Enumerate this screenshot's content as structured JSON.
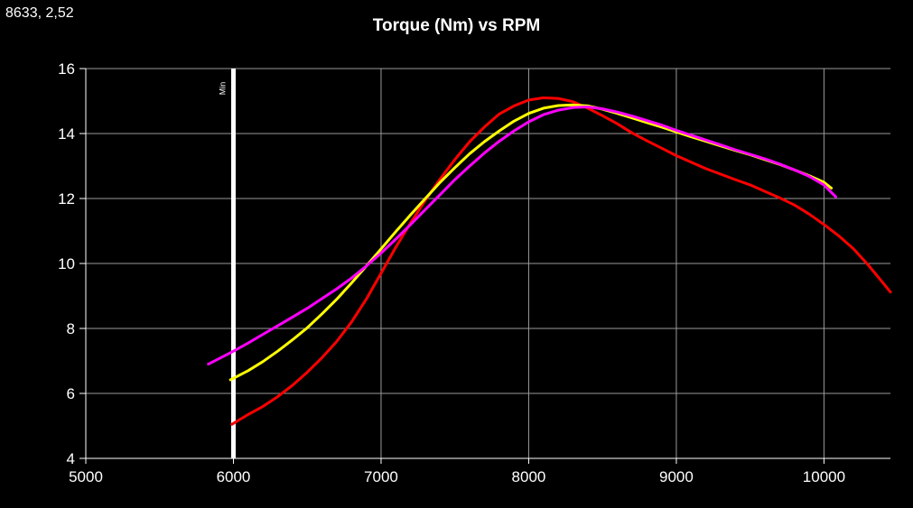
{
  "coordinate_readout": "8633, 2,52",
  "chart_data": {
    "type": "line",
    "title": "Torque (Nm) vs RPM",
    "xlabel": "",
    "ylabel": "",
    "xlim": [
      5000,
      10450
    ],
    "ylim": [
      4,
      16
    ],
    "x_ticks": [
      5000,
      6000,
      7000,
      8000,
      9000,
      10000
    ],
    "y_ticks": [
      4,
      6,
      8,
      10,
      12,
      14,
      16
    ],
    "grid": true,
    "background": "#000000",
    "marker": {
      "x": 6000,
      "label": "Min",
      "color": "#ffffff"
    },
    "series": [
      {
        "color": "#ff0000",
        "points": [
          [
            5990,
            5.05
          ],
          [
            6100,
            5.35
          ],
          [
            6200,
            5.6
          ],
          [
            6300,
            5.9
          ],
          [
            6400,
            6.25
          ],
          [
            6500,
            6.65
          ],
          [
            6600,
            7.1
          ],
          [
            6700,
            7.6
          ],
          [
            6800,
            8.2
          ],
          [
            6900,
            8.9
          ],
          [
            7000,
            9.7
          ],
          [
            7100,
            10.5
          ],
          [
            7200,
            11.25
          ],
          [
            7300,
            11.95
          ],
          [
            7400,
            12.6
          ],
          [
            7500,
            13.2
          ],
          [
            7600,
            13.75
          ],
          [
            7700,
            14.2
          ],
          [
            7800,
            14.6
          ],
          [
            7900,
            14.85
          ],
          [
            8000,
            15.03
          ],
          [
            8100,
            15.1
          ],
          [
            8200,
            15.08
          ],
          [
            8300,
            14.98
          ],
          [
            8400,
            14.78
          ],
          [
            8500,
            14.55
          ],
          [
            8600,
            14.3
          ],
          [
            8700,
            14.02
          ],
          [
            8800,
            13.78
          ],
          [
            8900,
            13.55
          ],
          [
            9000,
            13.32
          ],
          [
            9100,
            13.12
          ],
          [
            9200,
            12.92
          ],
          [
            9300,
            12.75
          ],
          [
            9400,
            12.58
          ],
          [
            9500,
            12.42
          ],
          [
            9600,
            12.22
          ],
          [
            9700,
            12.02
          ],
          [
            9800,
            11.8
          ],
          [
            9900,
            11.52
          ],
          [
            10000,
            11.2
          ],
          [
            10100,
            10.85
          ],
          [
            10200,
            10.45
          ],
          [
            10300,
            9.95
          ],
          [
            10400,
            9.4
          ],
          [
            10450,
            9.12
          ]
        ]
      },
      {
        "color": "#ffff00",
        "points": [
          [
            5980,
            6.42
          ],
          [
            6100,
            6.7
          ],
          [
            6200,
            6.98
          ],
          [
            6300,
            7.3
          ],
          [
            6400,
            7.65
          ],
          [
            6500,
            8.02
          ],
          [
            6600,
            8.45
          ],
          [
            6700,
            8.9
          ],
          [
            6800,
            9.4
          ],
          [
            6900,
            9.92
          ],
          [
            7000,
            10.45
          ],
          [
            7100,
            10.98
          ],
          [
            7200,
            11.5
          ],
          [
            7300,
            12.0
          ],
          [
            7400,
            12.5
          ],
          [
            7500,
            12.95
          ],
          [
            7600,
            13.38
          ],
          [
            7700,
            13.75
          ],
          [
            7800,
            14.08
          ],
          [
            7900,
            14.38
          ],
          [
            8000,
            14.62
          ],
          [
            8100,
            14.78
          ],
          [
            8200,
            14.86
          ],
          [
            8300,
            14.88
          ],
          [
            8400,
            14.85
          ],
          [
            8500,
            14.75
          ],
          [
            8600,
            14.62
          ],
          [
            8700,
            14.48
          ],
          [
            8800,
            14.34
          ],
          [
            8900,
            14.2
          ],
          [
            9000,
            14.05
          ],
          [
            9100,
            13.9
          ],
          [
            9200,
            13.76
          ],
          [
            9300,
            13.62
          ],
          [
            9400,
            13.48
          ],
          [
            9500,
            13.35
          ],
          [
            9600,
            13.2
          ],
          [
            9700,
            13.05
          ],
          [
            9800,
            12.88
          ],
          [
            9900,
            12.7
          ],
          [
            10000,
            12.5
          ],
          [
            10050,
            12.32
          ]
        ]
      },
      {
        "color": "#ff00ff",
        "points": [
          [
            5830,
            6.9
          ],
          [
            6000,
            7.3
          ],
          [
            6100,
            7.55
          ],
          [
            6200,
            7.82
          ],
          [
            6300,
            8.08
          ],
          [
            6400,
            8.35
          ],
          [
            6500,
            8.62
          ],
          [
            6600,
            8.92
          ],
          [
            6700,
            9.22
          ],
          [
            6800,
            9.55
          ],
          [
            6900,
            9.92
          ],
          [
            7000,
            10.32
          ],
          [
            7100,
            10.75
          ],
          [
            7200,
            11.2
          ],
          [
            7300,
            11.66
          ],
          [
            7400,
            12.12
          ],
          [
            7500,
            12.58
          ],
          [
            7600,
            13.0
          ],
          [
            7700,
            13.4
          ],
          [
            7800,
            13.76
          ],
          [
            7900,
            14.08
          ],
          [
            8000,
            14.36
          ],
          [
            8100,
            14.58
          ],
          [
            8200,
            14.72
          ],
          [
            8300,
            14.8
          ],
          [
            8400,
            14.82
          ],
          [
            8500,
            14.76
          ],
          [
            8600,
            14.66
          ],
          [
            8700,
            14.54
          ],
          [
            8800,
            14.4
          ],
          [
            8900,
            14.26
          ],
          [
            9000,
            14.1
          ],
          [
            9100,
            13.95
          ],
          [
            9200,
            13.8
          ],
          [
            9300,
            13.65
          ],
          [
            9400,
            13.5
          ],
          [
            9500,
            13.36
          ],
          [
            9600,
            13.22
          ],
          [
            9700,
            13.06
          ],
          [
            9800,
            12.88
          ],
          [
            9900,
            12.68
          ],
          [
            10000,
            12.42
          ],
          [
            10080,
            12.05
          ]
        ]
      }
    ]
  }
}
